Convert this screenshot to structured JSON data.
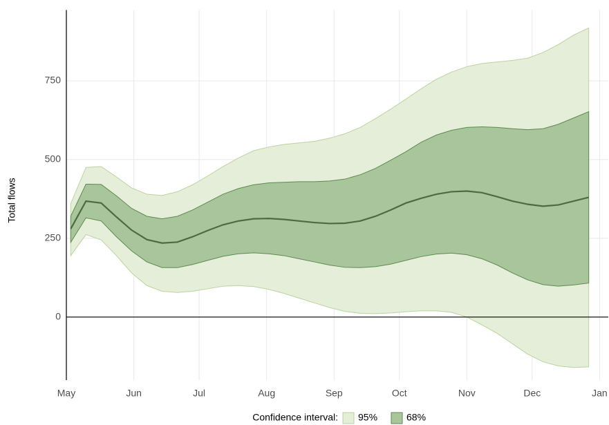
{
  "chart_data": {
    "type": "band_line",
    "y_label": "Total flows",
    "legend_title": "Confidence interval:",
    "x": [
      2,
      9,
      16,
      23,
      30,
      37,
      44,
      51,
      58,
      65,
      72,
      79,
      86,
      93,
      100,
      107,
      114,
      121,
      128,
      135,
      142,
      149,
      156,
      163,
      170,
      177,
      184,
      191,
      198,
      205,
      212,
      219,
      226,
      233,
      240
    ],
    "xlim": [
      0,
      249
    ],
    "xticks": [
      {
        "value": 0,
        "label": "May"
      },
      {
        "value": 31,
        "label": "Jun"
      },
      {
        "value": 61,
        "label": "Jul"
      },
      {
        "value": 92,
        "label": "Aug"
      },
      {
        "value": 123,
        "label": "Sep"
      },
      {
        "value": 153,
        "label": "Oct"
      },
      {
        "value": 184,
        "label": "Nov"
      },
      {
        "value": 214,
        "label": "Dec"
      },
      {
        "value": 245,
        "label": "Jan"
      }
    ],
    "ylim": [
      -200,
      975
    ],
    "yticks": [
      0,
      250,
      500,
      750
    ],
    "grid": true,
    "zero_line": true,
    "series": [
      {
        "name": "95%",
        "color": "#e5eed8",
        "edge_color": "#bcd3a0",
        "upper": [
          360,
          475,
          478,
          445,
          410,
          390,
          386,
          398,
          420,
          448,
          478,
          505,
          528,
          540,
          548,
          553,
          558,
          568,
          582,
          602,
          630,
          660,
          692,
          725,
          755,
          778,
          795,
          805,
          810,
          815,
          822,
          840,
          865,
          895,
          918
        ],
        "lower": [
          195,
          262,
          245,
          195,
          140,
          100,
          82,
          78,
          82,
          90,
          98,
          100,
          97,
          88,
          75,
          60,
          45,
          30,
          18,
          12,
          11,
          13,
          17,
          20,
          20,
          15,
          0,
          -25,
          -52,
          -85,
          -118,
          -142,
          -155,
          -160,
          -158
        ]
      },
      {
        "name": "68%",
        "color": "#a9c59b",
        "edge_color": "#5d8a4f",
        "upper": [
          320,
          422,
          421,
          385,
          345,
          320,
          312,
          320,
          340,
          365,
          390,
          408,
          420,
          426,
          428,
          430,
          430,
          432,
          438,
          452,
          472,
          498,
          525,
          555,
          578,
          593,
          602,
          604,
          602,
          598,
          595,
          598,
          612,
          632,
          652
        ],
        "lower": [
          237,
          315,
          305,
          255,
          210,
          175,
          157,
          157,
          167,
          180,
          193,
          201,
          204,
          201,
          195,
          185,
          175,
          165,
          158,
          157,
          160,
          168,
          180,
          192,
          200,
          203,
          198,
          185,
          165,
          140,
          118,
          103,
          98,
          102,
          108
        ]
      }
    ],
    "line": {
      "color": "#4c6b40",
      "values": [
        280,
        368,
        362,
        318,
        276,
        246,
        235,
        238,
        255,
        275,
        293,
        305,
        312,
        313,
        310,
        305,
        300,
        297,
        298,
        305,
        320,
        340,
        362,
        377,
        390,
        398,
        400,
        395,
        382,
        368,
        358,
        352,
        356,
        368,
        380
      ]
    }
  }
}
